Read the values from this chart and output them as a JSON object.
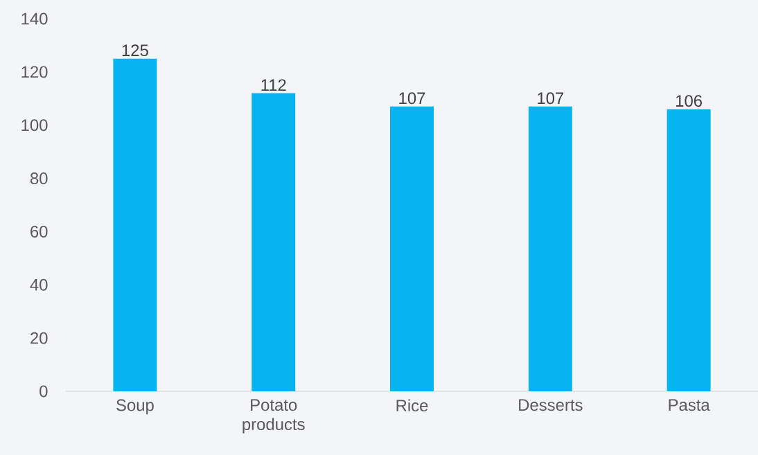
{
  "chart_data": {
    "type": "bar",
    "categories": [
      "Soup",
      "Potato products",
      "Rice",
      "Desserts",
      "Pasta"
    ],
    "values": [
      125,
      112,
      107,
      107,
      106
    ],
    "color": "#08b4ef",
    "ylim": [
      0,
      140
    ],
    "yticks": [
      0,
      20,
      40,
      60,
      80,
      100,
      120,
      140
    ],
    "data_labels": true
  }
}
